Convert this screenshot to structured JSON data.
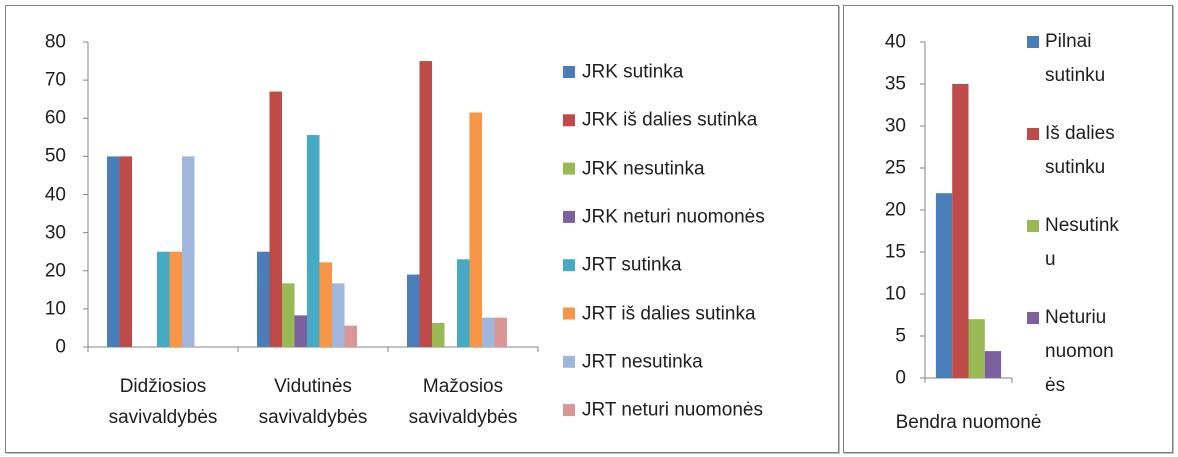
{
  "chart_data": [
    {
      "type": "bar",
      "categories": [
        "Didžiosios savivaldybės",
        "Vidutinės savivaldybės",
        "Mažosios savivaldybės"
      ],
      "series": [
        {
          "name": "JRK sutinka",
          "color": "#4a7ebb",
          "values": [
            50,
            25,
            19
          ]
        },
        {
          "name": "JRK iš dalies sutinka",
          "color": "#be4b48",
          "values": [
            50,
            67,
            75
          ]
        },
        {
          "name": "JRK nesutinka",
          "color": "#98b954",
          "values": [
            0,
            16.7,
            6.3
          ]
        },
        {
          "name": "JRK neturi nuomonės",
          "color": "#7d60a0",
          "values": [
            0,
            8.3,
            0
          ]
        },
        {
          "name": "JRT sutinka",
          "color": "#46aac5",
          "values": [
            25,
            55.6,
            23
          ]
        },
        {
          "name": "JRT iš dalies sutinka",
          "color": "#f79646",
          "values": [
            25,
            22.2,
            61.5
          ]
        },
        {
          "name": "JRT nesutinka",
          "color": "#a0b6dc",
          "values": [
            50,
            16.7,
            7.7
          ]
        },
        {
          "name": "JRT neturi nuomonės",
          "color": "#d99694",
          "values": [
            0,
            5.6,
            7.7
          ]
        }
      ],
      "ylim": [
        0,
        80
      ],
      "yticks": [
        0,
        10,
        20,
        30,
        40,
        50,
        60,
        70,
        80
      ],
      "legend": "right"
    },
    {
      "type": "bar",
      "categories": [
        "Bendra nuomonė"
      ],
      "series": [
        {
          "name": "Pilnai sutinku",
          "color": "#4a7ebb",
          "values": [
            22
          ]
        },
        {
          "name": "Iš dalies sutinku",
          "color": "#be4b48",
          "values": [
            35
          ]
        },
        {
          "name": "Nesutinku",
          "color": "#98b954",
          "values": [
            7
          ]
        },
        {
          "name": "Neturiu nuomonės",
          "color": "#7d60a0",
          "values": [
            3.2
          ]
        }
      ],
      "ylim": [
        0,
        40
      ],
      "yticks": [
        0,
        5,
        10,
        15,
        20,
        25,
        30,
        35,
        40
      ],
      "legend": "right"
    }
  ]
}
